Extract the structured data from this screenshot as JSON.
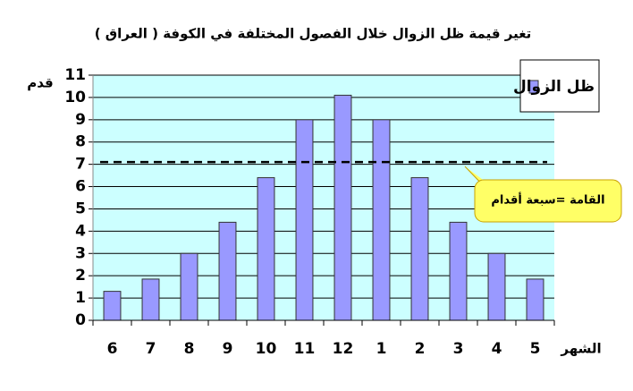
{
  "chart_data": {
    "type": "bar",
    "title": "تغير قيمة ظل الزوال خلال الفصول المختلفة في الكوفة ( العراق )",
    "y_label": "قدم",
    "x_label": "الشهر",
    "categories": [
      "6",
      "7",
      "8",
      "9",
      "10",
      "11",
      "12",
      "1",
      "2",
      "3",
      "4",
      "5"
    ],
    "series": [
      {
        "name": "ظل الزوال",
        "color": "#9999ff",
        "values": [
          1.3,
          1.85,
          3.0,
          4.4,
          6.4,
          9.0,
          10.1,
          9.0,
          6.4,
          4.4,
          3.0,
          1.85
        ]
      }
    ],
    "ylim": [
      0,
      11
    ],
    "yticks": [
      0,
      1,
      2,
      3,
      4,
      5,
      6,
      7,
      8,
      9,
      10,
      11
    ],
    "grid": true,
    "reference_line": {
      "value": 7.1,
      "annotation": "القامة =سبعة أقدام"
    },
    "legend": "top-right"
  }
}
